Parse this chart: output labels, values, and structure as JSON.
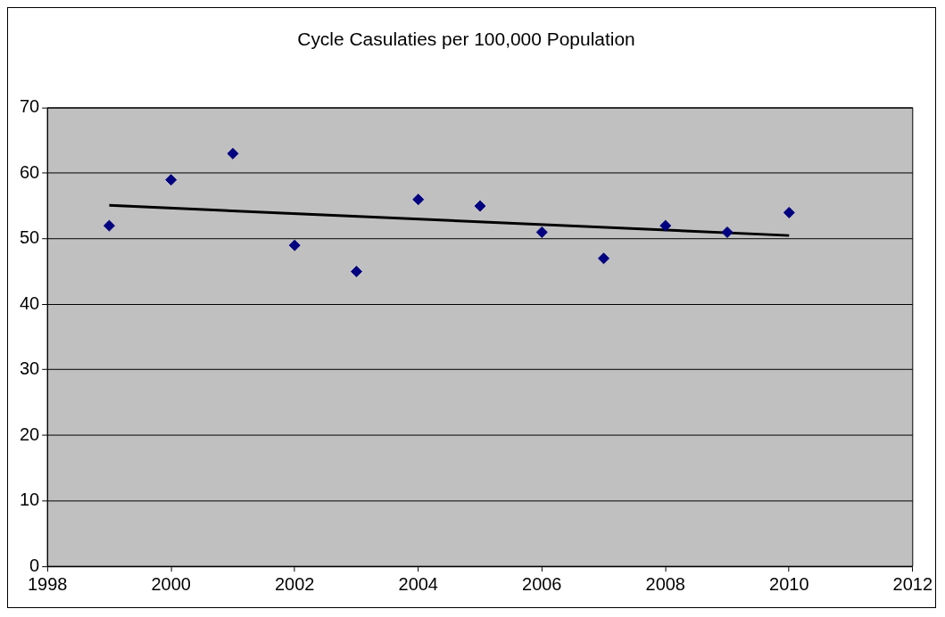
{
  "chart_data": {
    "type": "scatter",
    "title": "Cycle Casulaties per 100,000 Population",
    "series": [
      {
        "color": "#000080",
        "marker": "diamond",
        "x": [
          1999,
          2000,
          2001,
          2002,
          2003,
          2004,
          2005,
          2006,
          2007,
          2008,
          2009,
          2010
        ],
        "values": [
          52,
          59,
          63,
          49,
          45,
          56,
          55,
          51,
          47,
          52,
          51,
          54
        ]
      },
      {
        "type": "line",
        "color": "#000000",
        "x": [
          1999,
          2010
        ],
        "values": [
          55.1,
          50.5
        ]
      }
    ],
    "xlim": [
      1998,
      2012
    ],
    "xticks": [
      1998,
      2000,
      2002,
      2004,
      2006,
      2008,
      2010,
      2012
    ],
    "ylim": [
      0,
      70
    ],
    "yticks": [
      0,
      10,
      20,
      30,
      40,
      50,
      60,
      70
    ],
    "grid": "y",
    "legend": false
  }
}
